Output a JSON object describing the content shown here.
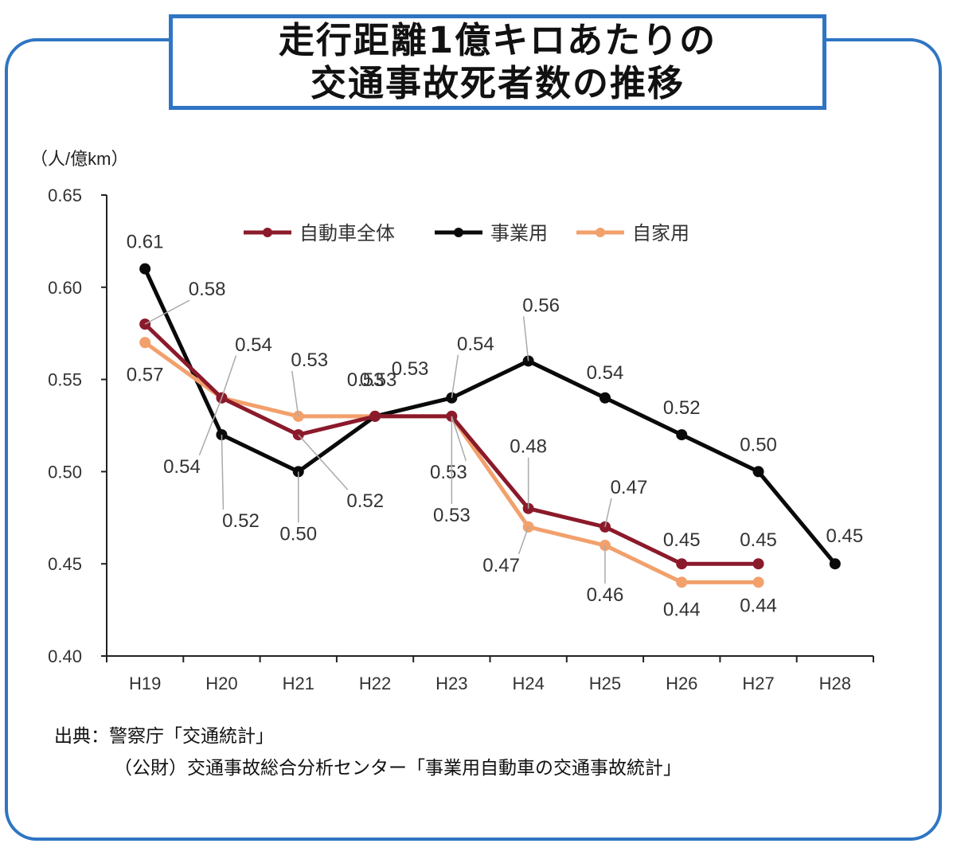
{
  "title": {
    "line1": "走行距離1億キロあたりの",
    "line2": "交通事故死者数の推移"
  },
  "source": {
    "line1": "出典：警察庁「交通統計」",
    "line2": "（公財）交通事故総合分析センター「事業用自動車の交通事故統計」"
  },
  "chart_data": {
    "type": "line",
    "ylabel": "（人/億km）",
    "ylim": [
      0.4,
      0.65
    ],
    "yticks": [
      "0.40",
      "0.45",
      "0.50",
      "0.55",
      "0.60",
      "0.65"
    ],
    "categories": [
      "H19",
      "H20",
      "H21",
      "H22",
      "H23",
      "H24",
      "H25",
      "H26",
      "H27",
      "H28"
    ],
    "legend_position": "top",
    "grid": false,
    "series": [
      {
        "name": "自動車全体",
        "color": "#8b1a2b",
        "values": [
          0.58,
          0.54,
          0.52,
          0.53,
          0.53,
          0.48,
          0.47,
          0.45,
          0.45,
          null
        ],
        "labels": [
          "0.58",
          "0.54",
          "0.52",
          "0.53",
          "0.53",
          "0.48",
          "0.47",
          "0.45",
          "0.45",
          ""
        ]
      },
      {
        "name": "事業用",
        "color": "#0a0a0a",
        "values": [
          0.61,
          0.52,
          0.5,
          0.53,
          0.54,
          0.56,
          0.54,
          0.52,
          0.5,
          0.45
        ],
        "labels": [
          "0.61",
          "0.52",
          "0.50",
          "0.53",
          "0.54",
          "0.56",
          "0.54",
          "0.52",
          "0.50",
          "0.45"
        ]
      },
      {
        "name": "自家用",
        "color": "#f2a06c",
        "values": [
          0.57,
          0.54,
          0.53,
          0.53,
          0.53,
          0.47,
          0.46,
          0.44,
          0.44,
          null
        ],
        "labels": [
          "0.57",
          "0.54",
          "0.53",
          "0.53",
          "0.53",
          "0.47",
          "0.46",
          "0.44",
          "0.44",
          ""
        ]
      }
    ]
  }
}
